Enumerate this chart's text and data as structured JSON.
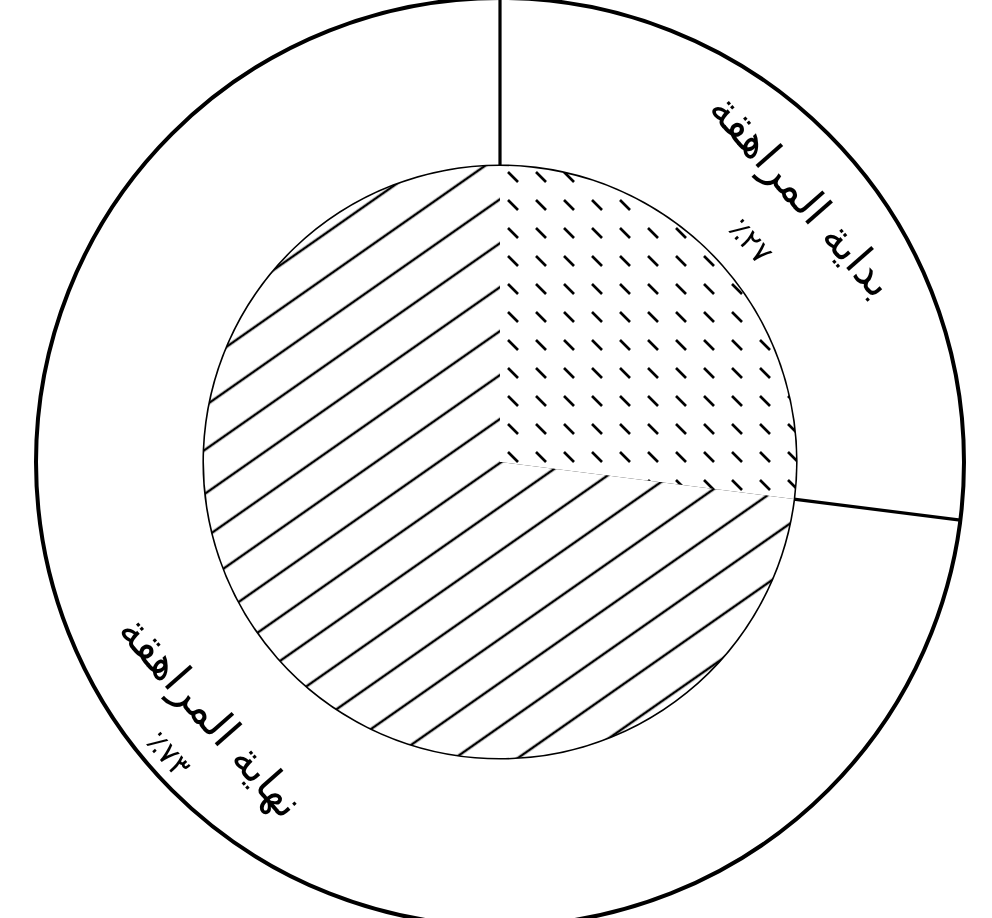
{
  "chart_data": {
    "type": "pie",
    "categories": [
      "بداية المراهقة",
      "نهاية المراهقة"
    ],
    "values": [
      27,
      73
    ],
    "value_labels": [
      "٢٧٪",
      "٧٣٪"
    ]
  }
}
